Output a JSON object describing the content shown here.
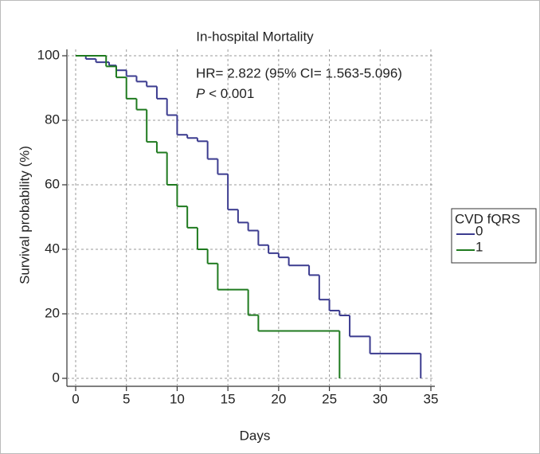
{
  "chart_data": {
    "type": "step",
    "title": "In-hospital Mortality",
    "xlabel": "Days",
    "ylabel": "Survival probability (%)",
    "annotations": [
      "HR= 2.822 (95% CI= 1.563-5.096)"
    ],
    "p_symbol": "P",
    "p_text": "< 0.001",
    "legend_title": "CVD fQRS",
    "legend": "right",
    "grid": true,
    "xlim": [
      0,
      35
    ],
    "xticks": [
      0,
      5,
      10,
      15,
      20,
      25,
      30,
      35
    ],
    "ylim": [
      0,
      100
    ],
    "yticks": [
      0,
      20,
      40,
      60,
      80,
      100
    ],
    "series": [
      {
        "name": "0",
        "color": "#3b3b8f",
        "x": [
          0,
          1,
          2,
          3.3,
          4,
          5,
          6,
          7,
          8,
          9,
          10,
          11,
          12,
          13,
          14,
          15,
          16,
          17,
          18,
          19,
          20,
          21,
          23,
          24,
          25,
          26,
          27,
          29,
          34
        ],
        "values": [
          100,
          99,
          98,
          97,
          95.5,
          93.7,
          92,
          90.5,
          86.7,
          81.6,
          75.5,
          74.5,
          73.5,
          68,
          63.3,
          52.3,
          48.3,
          45.8,
          41.3,
          38.8,
          37.5,
          35,
          32,
          24.4,
          21,
          19.5,
          13,
          7.7,
          0
        ]
      },
      {
        "name": "1",
        "color": "#1f7a1f",
        "x": [
          0,
          3,
          4,
          5,
          6,
          7,
          8,
          9,
          10,
          11,
          12,
          13,
          14,
          17,
          18,
          26
        ],
        "values": [
          100,
          96.7,
          93.3,
          86.7,
          83.3,
          73.3,
          70,
          60,
          53.3,
          46.7,
          40,
          35.6,
          27.5,
          19.6,
          14.7,
          0
        ]
      }
    ]
  }
}
